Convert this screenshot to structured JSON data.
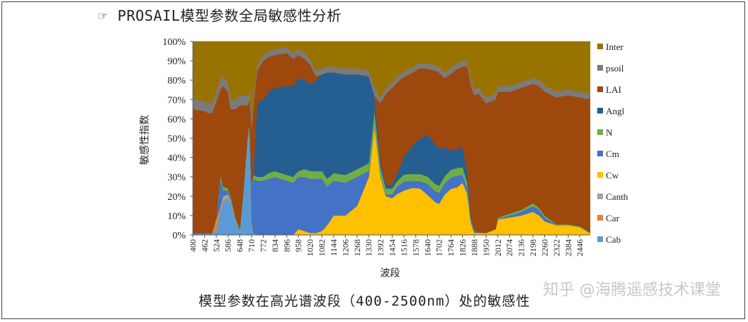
{
  "header": {
    "icon": "pointing-hand-icon",
    "title": "PROSAIL模型参数全局敏感性分析"
  },
  "caption": "模型参数在高光谱波段（400-2500nm）处的敏感性",
  "watermark": "知乎 @海腾遥感技术课堂",
  "chart_data": {
    "type": "area",
    "stacked": true,
    "normalized": true,
    "xlabel": "波段",
    "ylabel": "敏感性指数",
    "ylim": [
      0,
      100
    ],
    "yticks": [
      "0%",
      "10%",
      "20%",
      "30%",
      "40%",
      "50%",
      "60%",
      "70%",
      "80%",
      "90%",
      "100%"
    ],
    "xticks": [
      "400",
      "462",
      "524",
      "586",
      "648",
      "710",
      "772",
      "834",
      "896",
      "958",
      "1020",
      "1082",
      "1144",
      "1206",
      "1268",
      "1330",
      "1392",
      "1454",
      "1516",
      "1578",
      "1640",
      "1702",
      "1764",
      "1826",
      "1888",
      "1950",
      "2012",
      "2074",
      "2136",
      "2198",
      "2260",
      "2322",
      "2384",
      "2446"
    ],
    "legend_position": "right",
    "x": [
      400,
      462,
      480,
      500,
      524,
      545,
      560,
      586,
      600,
      625,
      648,
      665,
      690,
      700,
      710,
      720,
      740,
      772,
      800,
      834,
      896,
      930,
      958,
      990,
      1020,
      1050,
      1082,
      1110,
      1144,
      1206,
      1268,
      1330,
      1360,
      1392,
      1420,
      1454,
      1480,
      1516,
      1560,
      1600,
      1640,
      1680,
      1702,
      1730,
      1764,
      1800,
      1826,
      1850,
      1870,
      1888,
      1910,
      1950,
      2000,
      2012,
      2074,
      2136,
      2198,
      2230,
      2260,
      2322,
      2384,
      2446,
      2480,
      2500
    ],
    "series": [
      {
        "name": "Cab",
        "color": "#5b9bd5",
        "values": [
          0.5,
          0.5,
          0.5,
          0.5,
          2,
          12,
          17,
          19,
          17,
          8,
          2,
          20,
          48,
          52,
          5,
          1,
          0,
          0,
          0,
          0,
          0,
          0,
          0,
          0,
          0,
          0,
          0,
          0,
          0,
          0,
          0,
          0,
          0,
          0,
          0,
          0,
          0,
          0,
          0,
          0,
          0,
          0,
          0,
          0,
          0,
          0,
          0,
          0,
          0,
          0,
          0,
          0,
          0,
          0,
          0,
          0,
          0,
          0,
          0,
          0,
          0,
          0,
          0,
          0
        ]
      },
      {
        "name": "Car",
        "color": "#ed7d31",
        "values": [
          0,
          0,
          0,
          0,
          5,
          1.5,
          1,
          0,
          0,
          0,
          0,
          0,
          0,
          0,
          0,
          0,
          0,
          0,
          0,
          0,
          0,
          0,
          0,
          0,
          0,
          0,
          0,
          0,
          0,
          0,
          0,
          0,
          0,
          0,
          0,
          0,
          0,
          0,
          0,
          0,
          0,
          0,
          0,
          0,
          0,
          0,
          0,
          0,
          0,
          0,
          0,
          0,
          0,
          0,
          0,
          0,
          0,
          0,
          0,
          0,
          0,
          0,
          0,
          0
        ]
      },
      {
        "name": "Canth",
        "color": "#a5a5a5",
        "values": [
          0,
          0,
          0,
          0,
          0.5,
          1,
          2,
          2,
          1,
          0,
          0,
          0,
          1,
          2,
          1,
          0,
          0,
          0,
          0,
          0,
          0,
          0,
          0,
          0,
          0,
          0,
          0,
          0,
          0,
          0,
          0,
          0,
          0,
          0,
          0,
          0,
          0,
          0,
          0,
          0,
          0,
          0,
          0,
          0,
          0,
          0,
          0,
          0,
          0,
          0,
          0,
          0,
          0,
          0,
          0,
          0,
          0,
          0,
          0,
          0,
          0,
          0,
          0,
          0
        ]
      },
      {
        "name": "Cw",
        "color": "#ffc000",
        "values": [
          0,
          0,
          0,
          0,
          0,
          0,
          0,
          0,
          0,
          0,
          0,
          0,
          0,
          0,
          0,
          0,
          0,
          0,
          0,
          0,
          0,
          0,
          3,
          2,
          1,
          1,
          2,
          5,
          10,
          10,
          15,
          30,
          36,
          30,
          20,
          19,
          22,
          25,
          27,
          26,
          22,
          18,
          17,
          22,
          24,
          25,
          27,
          22,
          6,
          1,
          1,
          1,
          3,
          8,
          9,
          10,
          12,
          10,
          7,
          5,
          5,
          4,
          2,
          1
        ]
      },
      {
        "name": "Cm",
        "color": "#4472c4",
        "values": [
          0.5,
          0.5,
          0.5,
          0.5,
          0.5,
          15,
          3,
          2,
          1,
          0,
          0,
          0,
          2,
          2,
          20,
          28,
          28,
          28,
          29,
          30,
          28,
          27,
          27,
          28,
          28,
          28,
          27,
          20,
          18,
          17,
          15,
          3,
          1,
          1,
          1,
          2,
          4,
          5,
          4,
          4,
          6,
          6,
          6,
          6,
          6,
          6,
          4,
          3,
          1,
          0.5,
          0.5,
          0,
          0,
          0.5,
          1,
          2,
          3,
          3,
          2,
          0,
          0,
          0,
          0,
          0
        ]
      },
      {
        "name": "N",
        "color": "#70ad47",
        "values": [
          0,
          0,
          0,
          0,
          1,
          2,
          2,
          1,
          1,
          1,
          1,
          1,
          2,
          2,
          1,
          2,
          2,
          2,
          3,
          3,
          3,
          3,
          3,
          4,
          4,
          4,
          4,
          4,
          4,
          4,
          4,
          4,
          4,
          4,
          3,
          3,
          3,
          4,
          4,
          4,
          4,
          4,
          4,
          4,
          4,
          4,
          4,
          3,
          1,
          0.5,
          0,
          0,
          0,
          0.5,
          1,
          1,
          1.5,
          1,
          1,
          0.5,
          0.5,
          0.5,
          0.5,
          0
        ]
      },
      {
        "name": "Angl",
        "color": "#255e91",
        "values": [
          0,
          0,
          0,
          0,
          0,
          0,
          0,
          0,
          0,
          0,
          0,
          0,
          0,
          0,
          0,
          0,
          38,
          40,
          42,
          43,
          46,
          47,
          48,
          46,
          45,
          47,
          50,
          55,
          52,
          52,
          49,
          45,
          5,
          3,
          2,
          2,
          4,
          10,
          16,
          20,
          23,
          22,
          20,
          16,
          10,
          10,
          10,
          6,
          2,
          0.5,
          0,
          0,
          0,
          0,
          0,
          0,
          0,
          0,
          0,
          0,
          0,
          0,
          0,
          0
        ]
      },
      {
        "name": "LAI",
        "color": "#9e480e",
        "values": [
          64,
          63,
          62,
          62,
          60,
          44,
          52,
          50,
          45,
          56,
          64,
          46,
          14,
          14,
          28,
          36,
          17,
          20,
          18,
          17,
          17,
          14,
          12,
          11,
          10,
          2,
          0,
          0,
          0,
          0,
          0,
          0,
          0,
          30,
          47,
          50,
          49,
          45,
          42,
          39,
          36,
          40,
          42,
          38,
          40,
          42,
          42,
          56,
          67,
          70,
          72,
          67,
          67,
          65,
          63,
          63,
          62,
          63,
          64,
          66,
          67,
          67,
          68,
          70
        ]
      },
      {
        "name": "psoil",
        "color": "#7b7b7b",
        "values": [
          5,
          5,
          5,
          5,
          5,
          5,
          5,
          5,
          5,
          5,
          5,
          5,
          5,
          5,
          5,
          4,
          3,
          3,
          3,
          3,
          3,
          3,
          3,
          3,
          3,
          3,
          3,
          3,
          3,
          3,
          3,
          3,
          3,
          3,
          3,
          3,
          3,
          3,
          3,
          3,
          3,
          3,
          3,
          3,
          3,
          3,
          3,
          3,
          3,
          3,
          3,
          3,
          3,
          3,
          3,
          3,
          3,
          3,
          3,
          3,
          3,
          3,
          3,
          3
        ]
      },
      {
        "name": "Inter",
        "color": "#997300",
        "values": [
          30,
          31,
          32,
          32,
          26,
          20,
          18,
          21,
          30,
          30,
          28,
          28,
          28,
          25,
          40,
          29,
          12,
          7,
          5,
          4,
          3,
          6,
          4,
          6,
          9,
          15,
          14,
          13,
          13,
          14,
          14,
          15,
          15,
          29,
          24,
          21,
          19,
          17,
          15,
          12,
          12,
          13,
          14,
          17,
          14,
          11,
          10,
          10,
          20,
          25,
          24,
          29,
          27,
          23,
          23,
          21,
          19,
          20,
          23,
          26,
          25,
          26,
          27,
          26
        ]
      }
    ]
  }
}
